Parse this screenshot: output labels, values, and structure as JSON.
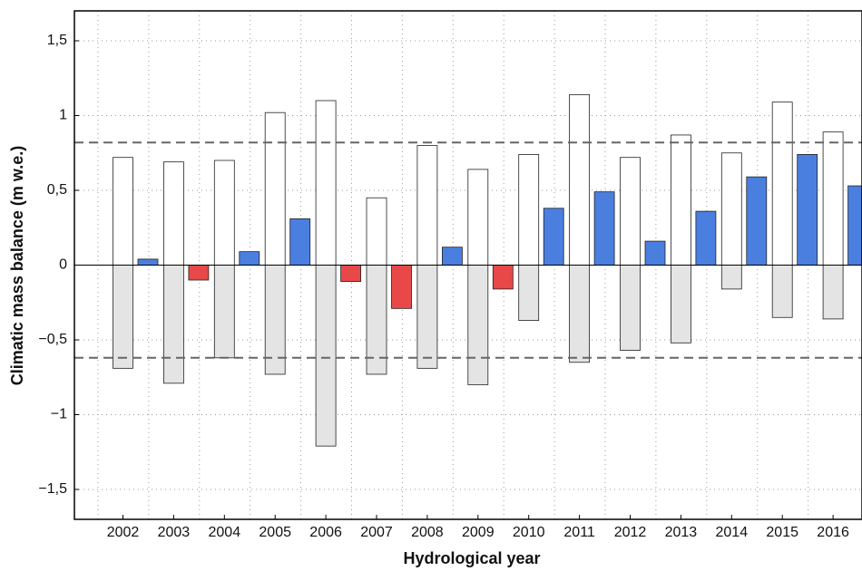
{
  "chart_data": {
    "type": "bar",
    "xlabel": "Hydrological year",
    "ylabel": "Climatic mass balance (m w.e.)",
    "categories": [
      "2002",
      "2003",
      "2004",
      "2005",
      "2006",
      "2007",
      "2008",
      "2009",
      "2010",
      "2011",
      "2012",
      "2013",
      "2014",
      "2015",
      "2016"
    ],
    "series": [
      {
        "color": "#ffffff",
        "values": [
          0.72,
          0.69,
          0.7,
          1.02,
          1.1,
          0.45,
          0.8,
          0.64,
          0.74,
          1.14,
          0.72,
          0.87,
          0.75,
          1.09,
          0.89
        ]
      },
      {
        "color": "#e4e4e4",
        "values": [
          -0.69,
          -0.79,
          -0.62,
          -0.73,
          -1.21,
          -0.73,
          -0.69,
          -0.8,
          -0.37,
          -0.65,
          -0.57,
          -0.52,
          -0.16,
          -0.35,
          -0.36
        ]
      },
      {
        "color": "#4a7fe0",
        "negative_color": "#e84848",
        "values": [
          0.04,
          -0.1,
          0.09,
          0.31,
          -0.11,
          -0.29,
          0.12,
          -0.16,
          0.38,
          0.49,
          0.16,
          0.36,
          0.59,
          0.74,
          0.53
        ]
      }
    ],
    "reference_lines": [
      0.82,
      -0.62
    ],
    "ylim": [
      -1.7,
      1.7
    ],
    "yticks": [
      {
        "value": -1.5,
        "label": "−1,5"
      },
      {
        "value": -1,
        "label": "−1"
      },
      {
        "value": -0.5,
        "label": "−0,5"
      },
      0,
      {
        "value": 0.5,
        "label": "0,5"
      },
      1,
      {
        "value": 1.5,
        "label": "1,5"
      }
    ],
    "grid": true
  }
}
